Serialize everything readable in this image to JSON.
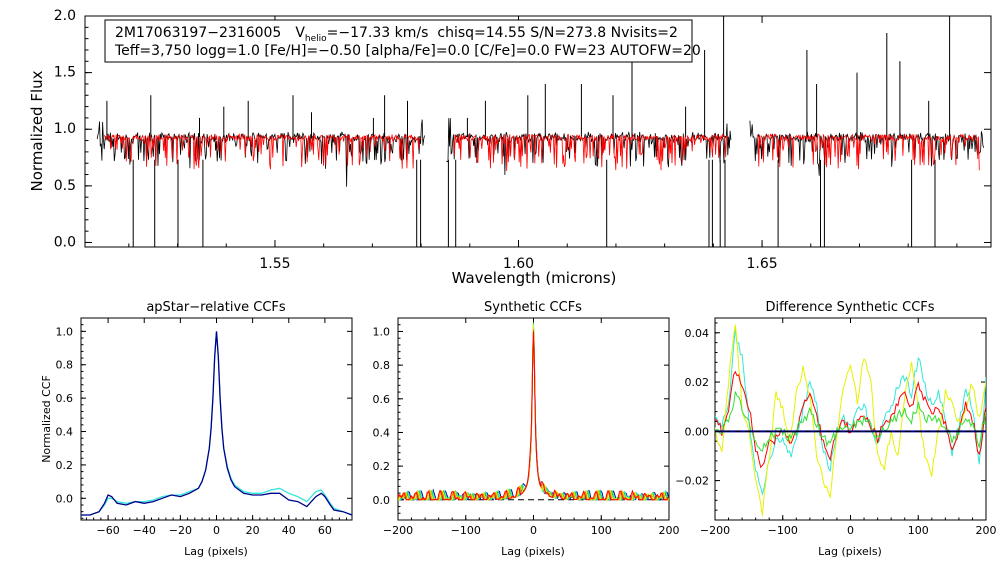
{
  "colors": {
    "black": "#000000",
    "red": "#ff0000",
    "cyan": "#33e6d9",
    "navy": "#00008b",
    "yellow": "#e6f200",
    "green": "#33dd33",
    "orange": "#ff8800"
  },
  "chart_data": [
    {
      "type": "line",
      "id": "spectrum",
      "title": "",
      "xlabel": "Wavelength (microns)",
      "ylabel": "Normalized Flux",
      "xlim": [
        1.511,
        1.697
      ],
      "ylim": [
        -0.04,
        2.0
      ],
      "xticks": [
        1.55,
        1.6,
        1.65
      ],
      "xtick_labels": [
        "1.55",
        "1.60",
        "1.65"
      ],
      "yticks": [
        0.0,
        0.5,
        1.0,
        1.5,
        2.0
      ],
      "ytick_labels": [
        "0.0",
        "0.5",
        "1.0",
        "1.5",
        "2.0"
      ],
      "annotation": {
        "star": "2M17063197−2316005",
        "v_label": "V",
        "v_sub": "helio",
        "v_value": "=−17.33 km/s",
        "stats": "chisq=14.55  S/N=273.8  Nvisits=2",
        "params": "Teff=3,750 logg=1.0 [Fe/H]=−0.50 [alpha/Fe]=0.0 [C/Fe]=0.0 FW=23 AUTOFW=20"
      },
      "chips": [
        [
          1.5135,
          1.5808
        ],
        [
          1.5852,
          1.6437
        ],
        [
          1.6475,
          1.6955
        ]
      ],
      "series": [
        {
          "name": "observed",
          "color": "#000000"
        },
        {
          "name": "synthetic",
          "color": "#ff0000"
        }
      ],
      "continuum": 0.93,
      "emission_lines": [
        1.5155,
        1.5245,
        1.5345,
        1.5395,
        1.5445,
        1.5537,
        1.5575,
        1.5702,
        1.5725,
        1.5772,
        1.5895,
        1.5932,
        1.6019,
        1.6055,
        1.6129,
        1.6194,
        1.6233,
        1.6343,
        1.6382,
        1.6421,
        1.6592,
        1.6612,
        1.6695,
        1.6756,
        1.6783,
        1.6842,
        1.6885
      ],
      "emission_heights": [
        1.25,
        1.3,
        1.1,
        1.2,
        1.25,
        1.3,
        1.15,
        1.1,
        1.3,
        1.25,
        1.1,
        1.25,
        1.3,
        1.4,
        1.4,
        1.3,
        1.8,
        1.2,
        1.7,
        2.0,
        1.7,
        1.4,
        1.5,
        1.85,
        1.6,
        1.25,
        2.0
      ],
      "absorption_lines": [
        1.5209,
        1.5253,
        1.5301,
        1.5352,
        1.5791,
        1.5799,
        1.5856,
        1.5871,
        1.6181,
        1.6391,
        1.6398,
        1.6414,
        1.6424,
        1.6533,
        1.662,
        1.6628,
        1.6807,
        1.6855
      ],
      "absorption_depths": [
        -0.05,
        -0.05,
        -0.05,
        -0.05,
        -0.05,
        -0.05,
        -0.05,
        -0.05,
        -0.05,
        -0.05,
        -0.05,
        -0.05,
        -0.05,
        -0.05,
        -0.05,
        -0.05,
        -0.05,
        -0.05
      ]
    },
    {
      "type": "line",
      "id": "apstar_ccf",
      "title": "apStar−relative CCFs",
      "xlabel": "Lag (pixels)",
      "ylabel": "Normalized CCF",
      "xlim": [
        -75,
        75
      ],
      "ylim": [
        -0.13,
        1.08
      ],
      "xticks": [
        -60,
        -40,
        -20,
        0,
        20,
        40,
        60
      ],
      "xtick_labels": [
        "−60",
        "−40",
        "−20",
        "0",
        "20",
        "40",
        "60"
      ],
      "yticks": [
        0.0,
        0.2,
        0.4,
        0.6,
        0.8,
        1.0
      ],
      "ytick_labels": [
        "0.0",
        "0.2",
        "0.4",
        "0.6",
        "0.8",
        "1.0"
      ],
      "x": [
        -75,
        -70,
        -65,
        -62,
        -60,
        -58,
        -55,
        -50,
        -45,
        -40,
        -35,
        -30,
        -25,
        -20,
        -15,
        -10,
        -8,
        -6,
        -4,
        -3,
        -2,
        -1,
        0,
        1,
        2,
        3,
        4,
        6,
        8,
        10,
        15,
        20,
        25,
        30,
        35,
        40,
        45,
        50,
        55,
        58,
        60,
        63,
        65,
        70,
        75
      ],
      "series": [
        {
          "name": "visit 1",
          "color": "#00008b",
          "values": [
            -0.1,
            -0.1,
            -0.08,
            -0.03,
            0.02,
            0.01,
            -0.03,
            -0.04,
            -0.02,
            -0.03,
            -0.02,
            0.0,
            0.02,
            0.01,
            0.03,
            0.06,
            0.1,
            0.17,
            0.3,
            0.42,
            0.6,
            0.85,
            1.0,
            0.85,
            0.6,
            0.42,
            0.3,
            0.18,
            0.11,
            0.07,
            0.03,
            0.02,
            0.02,
            0.03,
            0.03,
            -0.01,
            -0.02,
            -0.05,
            0.01,
            0.03,
            0.01,
            -0.04,
            -0.07,
            -0.08,
            -0.1
          ]
        },
        {
          "name": "visit 2",
          "color": "#33e6d9",
          "values": [
            -0.1,
            -0.1,
            -0.08,
            -0.04,
            0.0,
            0.0,
            -0.02,
            -0.03,
            -0.02,
            -0.02,
            -0.01,
            0.01,
            0.02,
            0.02,
            0.04,
            0.06,
            0.1,
            0.17,
            0.3,
            0.42,
            0.6,
            0.85,
            1.0,
            0.85,
            0.6,
            0.42,
            0.3,
            0.19,
            0.12,
            0.08,
            0.04,
            0.03,
            0.03,
            0.05,
            0.06,
            0.03,
            0.01,
            -0.02,
            0.04,
            0.05,
            0.02,
            -0.03,
            -0.06,
            -0.08,
            -0.1
          ]
        }
      ]
    },
    {
      "type": "line",
      "id": "synthetic_ccf",
      "title": "Synthetic CCFs",
      "xlabel": "Lag (pixels)",
      "ylabel": "",
      "xlim": [
        -200,
        200
      ],
      "ylim": [
        -0.12,
        1.08
      ],
      "xticks": [
        -200,
        -100,
        0,
        100,
        200
      ],
      "xtick_labels": [
        "−200",
        "−100",
        "0",
        "100",
        "200"
      ],
      "yticks": [
        0.0,
        0.2,
        0.4,
        0.6,
        0.8,
        1.0
      ],
      "ytick_labels": [
        "0.0",
        "0.2",
        "0.4",
        "0.6",
        "0.8",
        "1.0"
      ],
      "baseline": 0.0,
      "peak": 1.0,
      "series": [
        {
          "name": "navy",
          "color": "#00008b"
        },
        {
          "name": "cyan",
          "color": "#33e6d9"
        },
        {
          "name": "green",
          "color": "#33dd33"
        },
        {
          "name": "yellow",
          "color": "#e6f200"
        },
        {
          "name": "orange",
          "color": "#ff8800"
        },
        {
          "name": "red",
          "color": "#ff0000"
        }
      ]
    },
    {
      "type": "line",
      "id": "difference_ccf",
      "title": "Difference Synthetic CCFs",
      "xlabel": "Lag (pixels)",
      "ylabel": "",
      "xlim": [
        -200,
        200
      ],
      "ylim": [
        -0.036,
        0.046
      ],
      "xticks": [
        -200,
        -100,
        0,
        100,
        200
      ],
      "xtick_labels": [
        "−200",
        "−100",
        "0",
        "100",
        "200"
      ],
      "yticks": [
        -0.02,
        0.0,
        0.02,
        0.04
      ],
      "ytick_labels": [
        "−0.02",
        "0.00",
        "0.02",
        "0.04"
      ],
      "baseline": 0.0,
      "x": [
        -200,
        -190,
        -180,
        -170,
        -160,
        -150,
        -140,
        -130,
        -120,
        -110,
        -100,
        -90,
        -80,
        -70,
        -60,
        -50,
        -40,
        -30,
        -20,
        -10,
        0,
        10,
        20,
        30,
        40,
        50,
        60,
        70,
        80,
        90,
        100,
        110,
        120,
        130,
        140,
        150,
        160,
        170,
        180,
        190,
        200
      ],
      "series": [
        {
          "name": "cyan",
          "color": "#33e6d9",
          "values": [
            0.008,
            0.002,
            0.01,
            0.04,
            0.03,
            0.005,
            -0.015,
            -0.025,
            -0.01,
            -0.005,
            -0.002,
            -0.01,
            -0.005,
            0.008,
            0.02,
            0.01,
            -0.008,
            -0.015,
            0.0,
            0.005,
            0.002,
            0.008,
            0.01,
            0.002,
            -0.005,
            0.005,
            0.01,
            0.018,
            0.022,
            0.015,
            0.03,
            0.018,
            0.01,
            0.015,
            0.005,
            -0.01,
            0.002,
            0.018,
            0.01,
            -0.015,
            0.022
          ]
        },
        {
          "name": "yellow",
          "color": "#e6f200",
          "values": [
            0.0,
            -0.01,
            0.02,
            0.045,
            0.01,
            0.0,
            -0.02,
            -0.034,
            -0.01,
            0.015,
            0.01,
            -0.005,
            0.015,
            0.025,
            0.015,
            -0.01,
            -0.02,
            -0.025,
            0.0,
            0.02,
            0.028,
            0.012,
            0.03,
            0.02,
            -0.01,
            -0.015,
            0.0,
            -0.01,
            0.015,
            0.028,
            0.01,
            -0.01,
            -0.018,
            0.0,
            0.015,
            0.012,
            0.003,
            0.01,
            0.02,
            0.005,
            0.02
          ]
        },
        {
          "name": "red",
          "color": "#ff0000",
          "values": [
            0.005,
            0.0,
            0.01,
            0.025,
            0.02,
            0.01,
            -0.008,
            -0.015,
            -0.005,
            -0.003,
            0.0,
            -0.005,
            0.0,
            0.01,
            0.015,
            0.008,
            -0.005,
            -0.01,
            0.0,
            0.005,
            0.0,
            0.005,
            0.008,
            0.002,
            -0.003,
            0.005,
            0.005,
            0.012,
            0.015,
            0.01,
            0.02,
            0.012,
            0.008,
            0.01,
            0.003,
            -0.008,
            0.0,
            0.012,
            0.005,
            -0.01,
            0.01
          ]
        },
        {
          "name": "green",
          "color": "#33dd33",
          "values": [
            0.0,
            0.0,
            0.005,
            0.015,
            0.01,
            0.003,
            -0.005,
            -0.008,
            -0.003,
            0.0,
            0.0,
            -0.003,
            0.0,
            0.005,
            0.008,
            0.003,
            -0.003,
            -0.005,
            0.0,
            0.003,
            0.002,
            0.003,
            0.005,
            0.002,
            -0.002,
            0.002,
            0.003,
            0.006,
            0.008,
            0.005,
            0.01,
            0.006,
            0.004,
            0.005,
            0.002,
            -0.004,
            0.0,
            0.006,
            0.003,
            -0.005,
            0.008
          ]
        }
      ]
    }
  ]
}
